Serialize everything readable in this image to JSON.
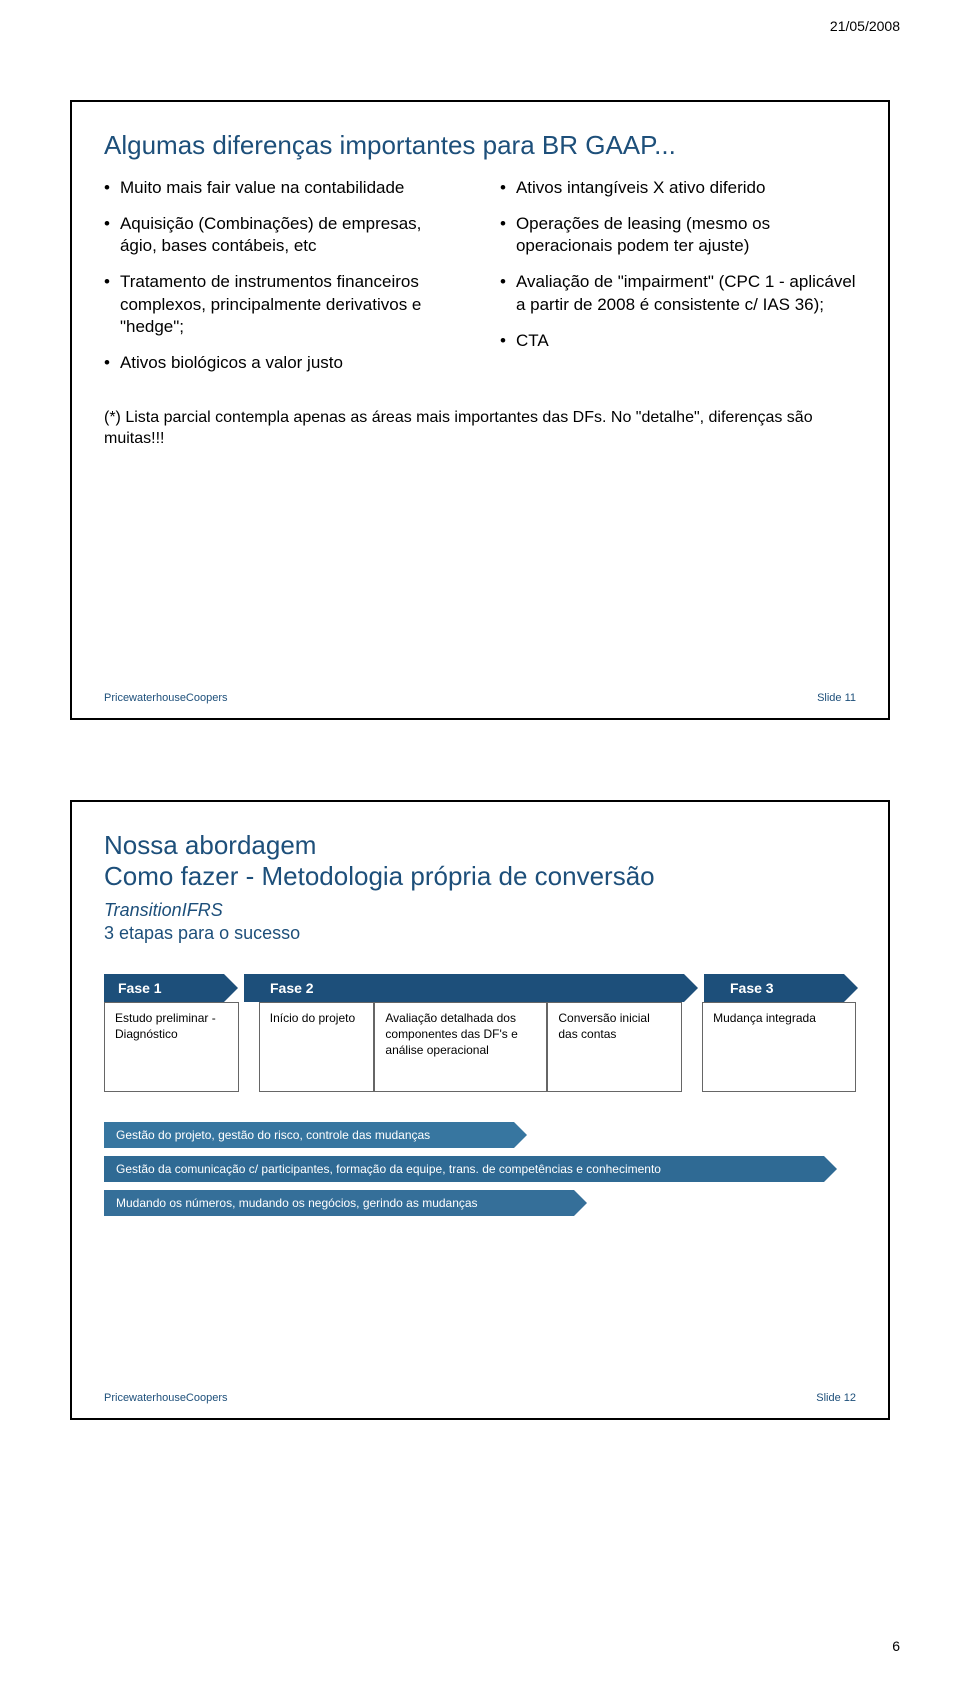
{
  "header": {
    "date": "21/05/2008"
  },
  "footer": {
    "page_number": "6"
  },
  "slide1": {
    "title": "Algumas diferenças importantes para BR GAAP...",
    "left_bullets": [
      "Muito mais fair value na contabilidade",
      "Aquisição (Combinações) de empresas, ágio, bases contábeis, etc",
      "Tratamento de instrumentos financeiros complexos, principalmente derivativos e \"hedge\";",
      "Ativos biológicos a valor justo"
    ],
    "right_bullets": [
      "Ativos intangíveis X ativo diferido",
      "Operações de leasing (mesmo os operacionais podem ter ajuste)",
      "Avaliação de \"impairment\" (CPC 1 - aplicável a partir de 2008 é consistente c/ IAS 36);",
      "CTA"
    ],
    "footnote": "(*) Lista parcial contempla apenas as áreas mais importantes das DFs. No \"detalhe\", diferenças são muitas!!!",
    "footer_left": "PricewaterhouseCoopers",
    "footer_right": "Slide 11"
  },
  "slide2": {
    "title_line1": "Nossa abordagem",
    "title_line2": "Como fazer - Metodologia própria de conversão",
    "subtitle_italic": "TransitionIFRS",
    "subtitle_plain": "3 etapas para o sucesso",
    "phases": {
      "tab1": "Fase 1",
      "tab2": "Fase 2",
      "tab3": "Fase 3",
      "box1": "Estudo preliminar - Diagnóstico",
      "box2": "Início do projeto",
      "box3": "Avaliação detalhada dos componentes das DF's e análise operacional",
      "box4": "Conversão inicial das contas",
      "box5": "Mudança integrada"
    },
    "bars": [
      "Gestão do projeto, gestão do risco, controle das mudanças",
      "Gestão da comunicação c/ participantes, formação da equipe, trans. de competências e conhecimento",
      "Mudando os números, mudando os negócios, gerindo as mudanças"
    ],
    "footer_left": "PricewaterhouseCoopers",
    "footer_right": "Slide 12"
  },
  "colors": {
    "title_color": "#1d4f7a",
    "phase_tab_bg": "#1d4f7a",
    "bar_bg": "#3776a0",
    "text_color": "#000000",
    "background": "#ffffff"
  }
}
